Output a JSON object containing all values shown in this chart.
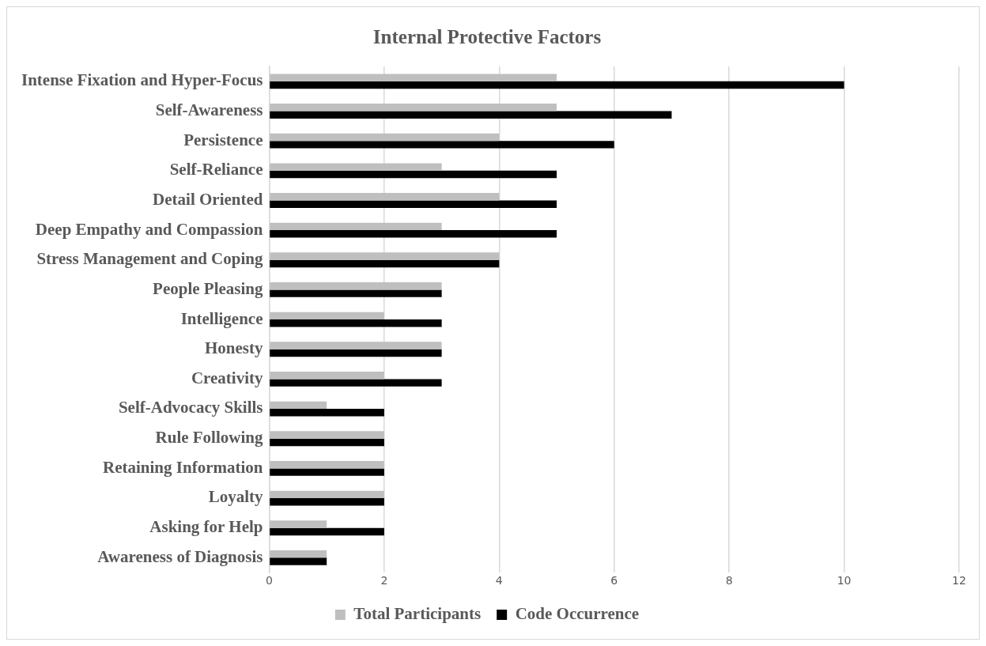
{
  "chart_data": {
    "type": "bar",
    "title": "Internal Protective Factors",
    "orientation": "horizontal",
    "categories": [
      "Intense Fixation and Hyper-Focus",
      "Self-Awareness",
      "Persistence",
      "Self-Reliance",
      "Detail Oriented",
      "Deep Empathy and Compassion",
      "Stress Management and Coping",
      "People Pleasing",
      "Intelligence",
      "Honesty",
      "Creativity",
      "Self-Advocacy Skills",
      "Rule Following",
      "Retaining Information",
      "Loyalty",
      "Asking for Help",
      "Awareness of Diagnosis"
    ],
    "series": [
      {
        "name": "Total Participants",
        "color": "#bfbfbf",
        "values": [
          5,
          5,
          4,
          3,
          4,
          3,
          4,
          3,
          2,
          3,
          2,
          1,
          2,
          2,
          2,
          1,
          1
        ]
      },
      {
        "name": "Code Occurrence",
        "color": "#000000",
        "values": [
          10,
          7,
          6,
          5,
          5,
          5,
          4,
          3,
          3,
          3,
          3,
          2,
          2,
          2,
          2,
          2,
          1
        ]
      }
    ],
    "xlim": [
      0,
      12
    ],
    "xticks": [
      0,
      2,
      4,
      6,
      8,
      10,
      12
    ],
    "grid": "x",
    "legend": "bottom"
  }
}
